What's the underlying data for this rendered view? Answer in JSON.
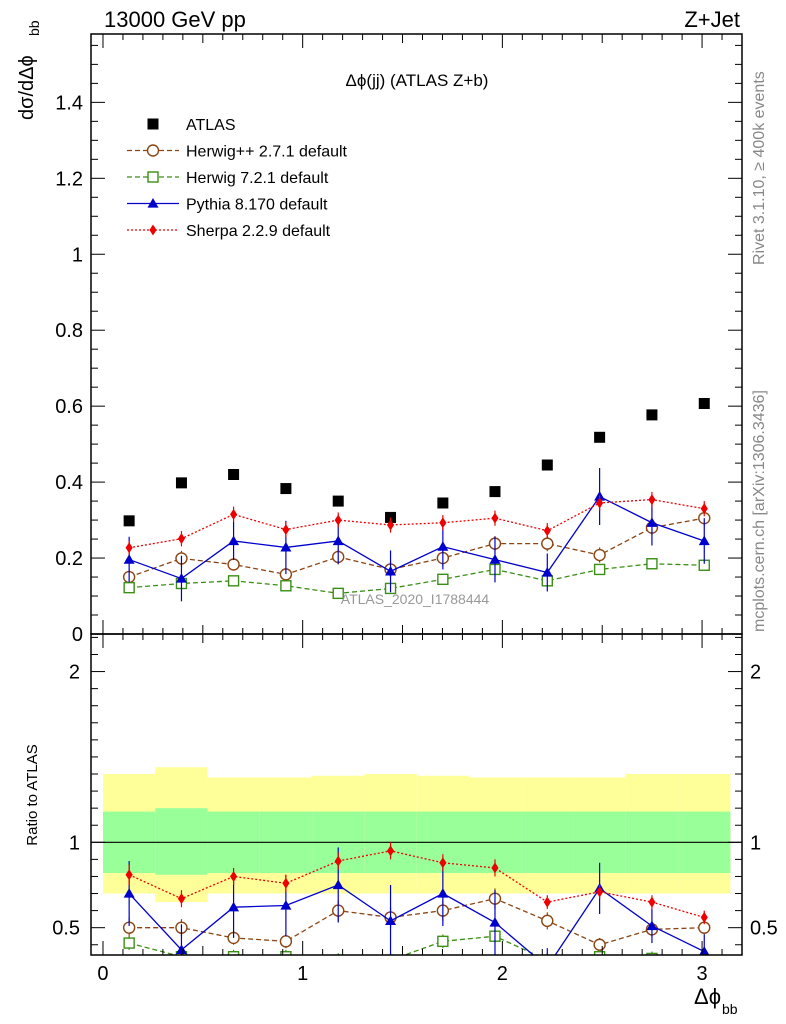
{
  "header": {
    "energy_label": "13000 GeV pp",
    "process_label": "Z+Jet",
    "rivet_label": "Rivet 3.1.10, ≥ 400k events",
    "mcplots_label": "mcplots.cern.ch [arXiv:1306.3436]"
  },
  "chart_data": {
    "type": "scatter",
    "title": "Δϕ(jj) (ATLAS Z+b)",
    "watermark": "ATLAS_2020_I1788444",
    "ylabel_top": "dσ/dΔϕ",
    "ylabel_top_sub": "bb",
    "ylabel_bottom": "Ratio to ATLAS",
    "xlabel": "Δϕ",
    "xlabel_sub": "bb",
    "xlim": [
      -0.06,
      3.2
    ],
    "ylim_top": [
      0,
      1.58
    ],
    "ylim_bottom": [
      0.34,
      2.22
    ],
    "x_ticks": [
      "0",
      "1",
      "2",
      "3"
    ],
    "y_ticks_top": [
      "0",
      "0.2",
      "0.4",
      "0.6",
      "0.8",
      "1",
      "1.2",
      "1.4"
    ],
    "y_ticks_bottom": [
      "0.5",
      "1",
      "2"
    ],
    "x": [
      0.131,
      0.393,
      0.654,
      0.916,
      1.178,
      1.44,
      1.702,
      1.963,
      2.225,
      2.487,
      2.749,
      3.011
    ],
    "bin_edges": [
      0,
      0.262,
      0.524,
      0.785,
      1.047,
      1.309,
      1.571,
      1.833,
      2.094,
      2.356,
      2.618,
      2.88,
      3.142
    ],
    "band_inner": [
      [
        0.82,
        1.18
      ],
      [
        0.81,
        1.2
      ],
      [
        0.82,
        1.18
      ],
      [
        0.82,
        1.18
      ],
      [
        0.82,
        1.18
      ],
      [
        0.82,
        1.18
      ],
      [
        0.82,
        1.18
      ],
      [
        0.82,
        1.18
      ],
      [
        0.82,
        1.18
      ],
      [
        0.82,
        1.18
      ],
      [
        0.82,
        1.18
      ],
      [
        0.82,
        1.18
      ]
    ],
    "band_outer": [
      [
        0.7,
        1.4
      ],
      [
        0.65,
        1.44
      ],
      [
        0.7,
        1.38
      ],
      [
        0.7,
        1.38
      ],
      [
        0.7,
        1.39
      ],
      [
        0.7,
        1.4
      ],
      [
        0.7,
        1.39
      ],
      [
        0.7,
        1.38
      ],
      [
        0.7,
        1.38
      ],
      [
        0.7,
        1.38
      ],
      [
        0.7,
        1.4
      ],
      [
        0.7,
        1.4
      ]
    ],
    "series": [
      {
        "name": "ATLAS",
        "color": "#000000",
        "marker": "square",
        "line": "none",
        "values": [
          0.298,
          0.398,
          0.42,
          0.383,
          0.35,
          0.307,
          0.345,
          0.375,
          0.445,
          0.518,
          0.577,
          0.607
        ],
        "errors": [
          0,
          0,
          0,
          0,
          0,
          0,
          0,
          0,
          0,
          0,
          0,
          0
        ],
        "ratio": [
          1,
          1,
          1,
          1,
          1,
          1,
          1,
          1,
          1,
          1,
          1,
          1
        ],
        "ratio_errors": [
          0,
          0,
          0,
          0,
          0,
          0,
          0,
          0,
          0,
          0,
          0,
          0
        ]
      },
      {
        "name": "Herwig++ 2.7.1 default",
        "color": "#8b4513",
        "marker": "circle",
        "line": "dashed",
        "values": [
          0.15,
          0.199,
          0.183,
          0.157,
          0.203,
          0.17,
          0.2,
          0.238,
          0.238,
          0.208,
          0.28,
          0.305
        ],
        "errors": [
          0.02,
          0.02,
          0.015,
          0.015,
          0.02,
          0.02,
          0.02,
          0.02,
          0.02,
          0.02,
          0.02,
          0.02
        ],
        "ratio": [
          0.5,
          0.5,
          0.44,
          0.42,
          0.6,
          0.56,
          0.6,
          0.67,
          0.54,
          0.4,
          0.49,
          0.5
        ],
        "ratio_errors": [
          0.06,
          0.05,
          0.04,
          0.04,
          0.06,
          0.06,
          0.06,
          0.06,
          0.05,
          0.04,
          0.04,
          0.04
        ]
      },
      {
        "name": "Herwig 7.2.1 default",
        "color": "#3a8f14",
        "marker": "open-square",
        "line": "dashed",
        "values": [
          0.122,
          0.133,
          0.14,
          0.127,
          0.107,
          0.12,
          0.144,
          0.17,
          0.14,
          0.17,
          0.185,
          0.181
        ],
        "errors": [
          0.014,
          0.014,
          0.014,
          0.014,
          0.014,
          0.014,
          0.014,
          0.014,
          0.014,
          0.014,
          0.014,
          0.014
        ],
        "ratio": [
          0.41,
          0.33,
          0.33,
          0.33,
          0.31,
          0.31,
          0.42,
          0.45,
          0.31,
          0.33,
          0.32,
          0.3
        ],
        "ratio_errors": [
          0.04,
          0.04,
          0.04,
          0.04,
          0.04,
          0.04,
          0.04,
          0.04,
          0.04,
          0.04,
          0.04,
          0.04
        ]
      },
      {
        "name": "Pythia 8.170 default",
        "color": "#0000cc",
        "marker": "triangle",
        "line": "solid",
        "values": [
          0.196,
          0.146,
          0.245,
          0.228,
          0.245,
          0.165,
          0.23,
          0.196,
          0.162,
          0.362,
          0.293,
          0.245
        ],
        "errors": [
          0.06,
          0.06,
          0.05,
          0.07,
          0.06,
          0.055,
          0.06,
          0.06,
          0.05,
          0.075,
          0.06,
          0.06
        ],
        "ratio": [
          0.7,
          0.37,
          0.62,
          0.63,
          0.75,
          0.54,
          0.7,
          0.53,
          0.27,
          0.73,
          0.51,
          0.36
        ],
        "ratio_errors": [
          0.19,
          0.15,
          0.18,
          0.18,
          0.22,
          0.21,
          0.19,
          0.19,
          0.11,
          0.15,
          0.1,
          0.1
        ]
      },
      {
        "name": "Sherpa 2.2.9 default",
        "color": "#ee0000",
        "marker": "diamond",
        "line": "dotted",
        "values": [
          0.227,
          0.251,
          0.315,
          0.275,
          0.3,
          0.287,
          0.293,
          0.305,
          0.272,
          0.345,
          0.354,
          0.33
        ],
        "errors": [
          0.018,
          0.02,
          0.02,
          0.02,
          0.02,
          0.02,
          0.02,
          0.02,
          0.02,
          0.02,
          0.02,
          0.02
        ],
        "ratio": [
          0.81,
          0.67,
          0.8,
          0.76,
          0.89,
          0.95,
          0.88,
          0.85,
          0.65,
          0.71,
          0.65,
          0.56
        ],
        "ratio_errors": [
          0.06,
          0.05,
          0.05,
          0.05,
          0.05,
          0.05,
          0.05,
          0.05,
          0.04,
          0.04,
          0.04,
          0.04
        ]
      }
    ]
  }
}
